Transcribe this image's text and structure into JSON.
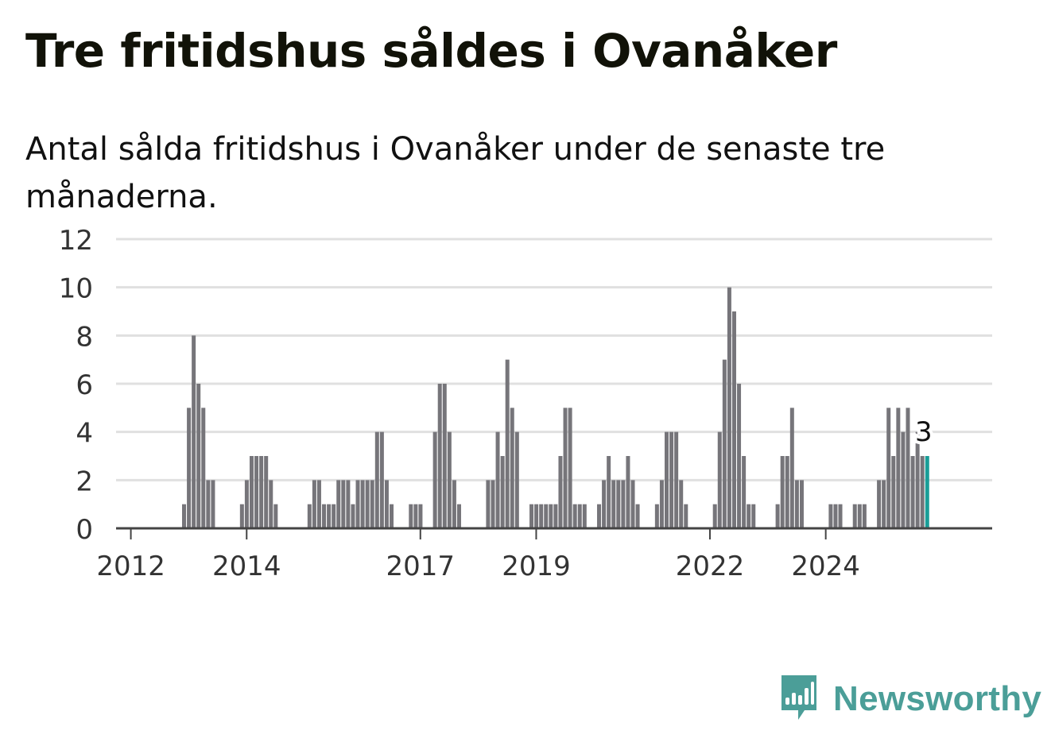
{
  "header": {
    "title": "Tre fritidshus såldes i Ovanåker",
    "subtitle": "Antal sålda fritidshus i Ovanåker under de senaste tre månaderna."
  },
  "brand": {
    "name": "Newsworthy",
    "color": "#4b9e98"
  },
  "colors": {
    "bar": "#76757a",
    "highlight": "#1a9e98",
    "grid": "#e0e0e0",
    "axis": "#444444"
  },
  "chart_data": {
    "type": "bar",
    "x_tick_labels": [
      "2012",
      "2014",
      "2017",
      "2019",
      "2022",
      "2024"
    ],
    "x_tick_dates": [
      "2012-01",
      "2014-01",
      "2017-01",
      "2019-01",
      "2022-01",
      "2024-01"
    ],
    "y_ticks": [
      0,
      2,
      4,
      6,
      8,
      10,
      12
    ],
    "ylim": [
      0,
      12
    ],
    "grid": true,
    "x_start": "2011-07",
    "highlight_label": "3",
    "values": [
      0,
      0,
      0,
      0,
      0,
      0,
      0,
      0,
      0,
      0,
      0,
      0,
      1,
      5,
      8,
      6,
      5,
      2,
      2,
      0,
      0,
      0,
      0,
      0,
      1,
      2,
      3,
      3,
      3,
      3,
      2,
      1,
      0,
      0,
      0,
      0,
      0,
      0,
      1,
      2,
      2,
      1,
      1,
      1,
      2,
      2,
      2,
      1,
      2,
      2,
      2,
      2,
      4,
      4,
      2,
      1,
      0,
      0,
      0,
      1,
      1,
      1,
      0,
      0,
      4,
      6,
      6,
      4,
      2,
      1,
      0,
      0,
      0,
      0,
      0,
      2,
      2,
      4,
      3,
      7,
      5,
      4,
      0,
      0,
      1,
      1,
      1,
      1,
      1,
      1,
      3,
      5,
      5,
      1,
      1,
      1,
      0,
      0,
      1,
      2,
      3,
      2,
      2,
      2,
      3,
      2,
      1,
      0,
      0,
      0,
      1,
      2,
      4,
      4,
      4,
      2,
      1,
      0,
      0,
      0,
      0,
      0,
      1,
      4,
      7,
      10,
      9,
      6,
      3,
      1,
      1,
      0,
      0,
      0,
      0,
      1,
      3,
      3,
      5,
      2,
      2,
      0,
      0,
      0,
      0,
      0,
      1,
      1,
      1,
      0,
      0,
      1,
      1,
      1,
      0,
      0,
      2,
      2,
      5,
      3,
      5,
      4,
      5,
      3,
      4,
      3,
      3
    ]
  }
}
